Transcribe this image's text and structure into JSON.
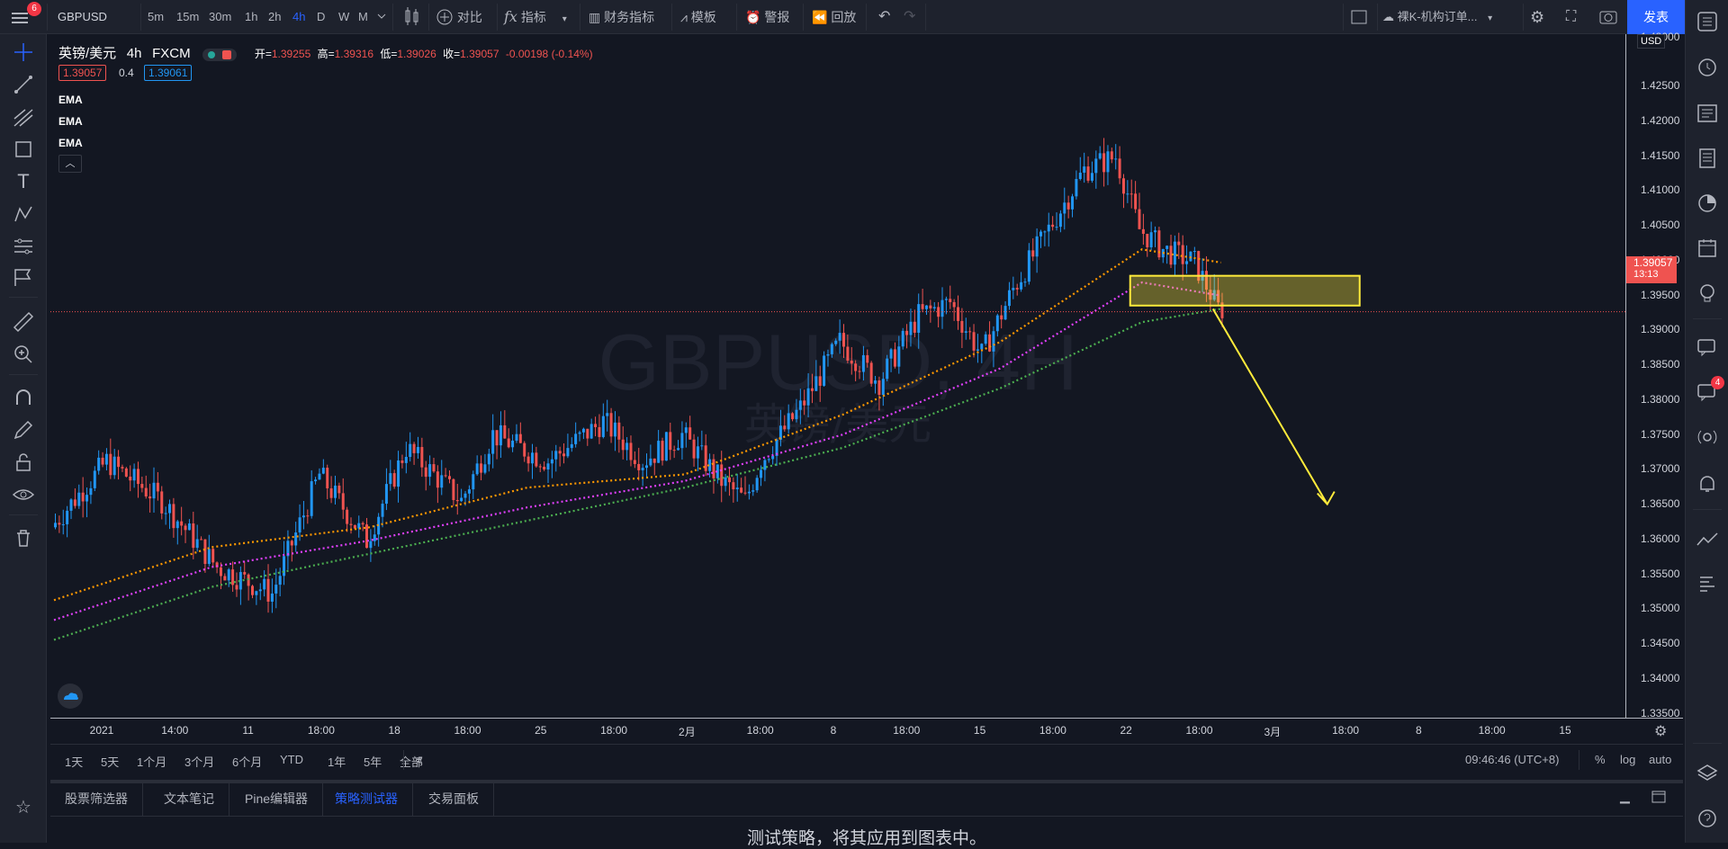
{
  "topbar": {
    "notification_count": "6",
    "symbol": "GBPUSD",
    "intervals": [
      "5m",
      "15m",
      "30m",
      "1h",
      "2h",
      "4h",
      "D",
      "W",
      "M"
    ],
    "active_interval": "4h",
    "compare_label": "对比",
    "indicators_label": "指标",
    "financials_label": "财务指标",
    "templates_label": "模板",
    "alert_label": "警报",
    "replay_label": "回放",
    "layout_name": "裸K-机构订单...",
    "publish_label": "发表"
  },
  "legend": {
    "title": "英镑/美元",
    "interval": "4h",
    "source": "FXCM",
    "open_label": "开=",
    "open_value": "1.39255",
    "high_label": "高=",
    "high_value": "1.39316",
    "low_label": "低=",
    "low_value": "1.39026",
    "close_label": "收=",
    "close_value": "1.39057",
    "change": "-0.00198 (-0.14%)",
    "bid": "1.39057",
    "spread": "0.4",
    "ask": "1.39061",
    "indicators": [
      "EMA",
      "EMA",
      "EMA"
    ]
  },
  "watermark": {
    "symbol": "GBPUSD, 4H",
    "name": "英镑/美元"
  },
  "price_axis": {
    "currency": "USD",
    "current_price": "1.39057",
    "countdown": "13:13",
    "top_partial": "1.43000",
    "ticks": [
      "1.42500",
      "1.42000",
      "1.41500",
      "1.41000",
      "1.40500",
      "1.40000",
      "1.39500",
      "1.39000",
      "1.38500",
      "1.38000",
      "1.37500",
      "1.37000",
      "1.36500",
      "1.36000",
      "1.35500",
      "1.35000",
      "1.34500",
      "1.34000",
      "1.33500"
    ]
  },
  "time_axis": {
    "ticks": [
      "2021",
      "14:00",
      "11",
      "18:00",
      "18",
      "18:00",
      "25",
      "18:00",
      "2月",
      "18:00",
      "8",
      "18:00",
      "15",
      "18:00",
      "22",
      "18:00",
      "3月",
      "18:00",
      "8",
      "18:00",
      "15"
    ]
  },
  "range_bar": {
    "ranges": [
      "1天",
      "5天",
      "1个月",
      "3个月",
      "6个月",
      "YTD",
      "1年",
      "5年",
      "全部"
    ],
    "clock": "09:46:46 (UTC+8)",
    "percent_label": "%",
    "log_label": "log",
    "auto_label": "auto"
  },
  "bottom_panel": {
    "tabs": [
      "股票筛选器",
      "文本笔记",
      "Pine编辑器",
      "策略测试器",
      "交易面板"
    ],
    "active_tab": "策略测试器",
    "message": "测试策略，将其应用到图表中。"
  },
  "right_sidebar": {
    "chat_badge": "4"
  },
  "colors": {
    "background": "#131722",
    "up": "#2196f3",
    "down": "#ef5350",
    "ema_fast": "#ff9800",
    "ema_mid": "#e040fb",
    "ema_slow": "#4caf50",
    "highlight_box": "#ffeb3b",
    "accent": "#2962ff"
  },
  "chart_data": {
    "type": "candlestick",
    "x_range": [
      "2021-01-04",
      "2021-03-16"
    ],
    "ylim": [
      1.3325,
      1.4325
    ],
    "approx_path": [
      [
        0,
        1.358
      ],
      [
        14,
        1.368
      ],
      [
        28,
        1.362
      ],
      [
        42,
        1.352
      ],
      [
        56,
        1.348
      ],
      [
        68,
        1.366
      ],
      [
        80,
        1.356
      ],
      [
        90,
        1.37
      ],
      [
        104,
        1.362
      ],
      [
        112,
        1.372
      ],
      [
        126,
        1.368
      ],
      [
        140,
        1.374
      ],
      [
        150,
        1.368
      ],
      [
        160,
        1.372
      ],
      [
        170,
        1.365
      ],
      [
        176,
        1.362
      ],
      [
        180,
        1.368
      ],
      [
        190,
        1.376
      ],
      [
        200,
        1.386
      ],
      [
        210,
        1.38
      ],
      [
        220,
        1.39
      ],
      [
        228,
        1.392
      ],
      [
        236,
        1.384
      ],
      [
        244,
        1.394
      ],
      [
        254,
        1.404
      ],
      [
        262,
        1.412
      ],
      [
        270,
        1.414
      ],
      [
        276,
        1.403
      ],
      [
        282,
        1.4
      ],
      [
        290,
        1.398
      ],
      [
        296,
        1.391
      ]
    ],
    "ema_fast_path": [
      [
        0,
        1.347
      ],
      [
        40,
        1.355
      ],
      [
        80,
        1.358
      ],
      [
        120,
        1.364
      ],
      [
        160,
        1.366
      ],
      [
        200,
        1.375
      ],
      [
        240,
        1.386
      ],
      [
        276,
        1.4
      ],
      [
        296,
        1.398
      ]
    ],
    "ema_mid_path": [
      [
        0,
        1.344
      ],
      [
        40,
        1.352
      ],
      [
        80,
        1.356
      ],
      [
        120,
        1.361
      ],
      [
        160,
        1.365
      ],
      [
        200,
        1.372
      ],
      [
        240,
        1.382
      ],
      [
        276,
        1.395
      ],
      [
        296,
        1.393
      ]
    ],
    "ema_slow_path": [
      [
        0,
        1.341
      ],
      [
        40,
        1.349
      ],
      [
        80,
        1.354
      ],
      [
        120,
        1.359
      ],
      [
        160,
        1.364
      ],
      [
        200,
        1.37
      ],
      [
        240,
        1.379
      ],
      [
        276,
        1.389
      ],
      [
        296,
        1.391
      ]
    ],
    "zone": {
      "price_high": 1.396,
      "price_low": 1.3915
    },
    "projection_arrow": {
      "from_price": 1.391,
      "to_price": 1.3615
    }
  }
}
